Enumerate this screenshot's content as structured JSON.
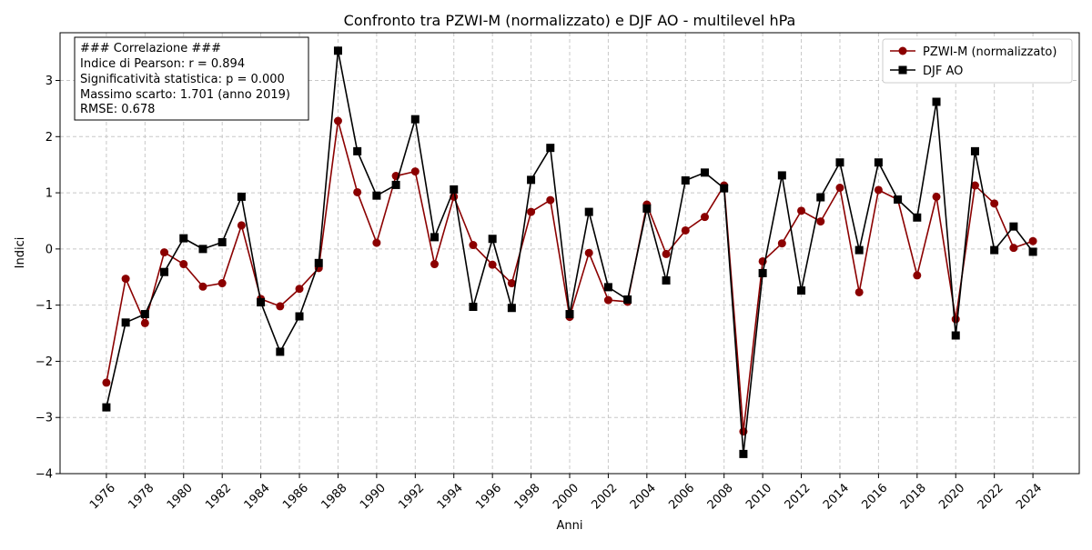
{
  "chart_data": {
    "type": "line",
    "title": "Confronto tra PZWI-M (normalizzato) e DJF AO - multilevel hPa",
    "xlabel": "Anni",
    "ylabel": "Indici",
    "xlim": [
      1973.6,
      2026.4
    ],
    "ylim": [
      -4,
      3.85
    ],
    "x_ticks": [
      1976,
      1978,
      1980,
      1982,
      1984,
      1986,
      1988,
      1990,
      1992,
      1994,
      1996,
      1998,
      2000,
      2002,
      2004,
      2006,
      2008,
      2010,
      2012,
      2014,
      2016,
      2018,
      2020,
      2022,
      2024
    ],
    "y_ticks": [
      -4,
      -3,
      -2,
      -1,
      0,
      1,
      2,
      3
    ],
    "y_tick_labels": [
      "−4",
      "−3",
      "−2",
      "−1",
      "0",
      "1",
      "2",
      "3"
    ],
    "grid": true,
    "legend_position": "upper right",
    "x": [
      1976,
      1977,
      1978,
      1979,
      1980,
      1981,
      1982,
      1983,
      1984,
      1985,
      1986,
      1987,
      1988,
      1989,
      1990,
      1991,
      1992,
      1993,
      1994,
      1995,
      1996,
      1997,
      1998,
      1999,
      2000,
      2001,
      2002,
      2003,
      2004,
      2005,
      2006,
      2007,
      2008,
      2009,
      2010,
      2011,
      2012,
      2013,
      2014,
      2015,
      2016,
      2017,
      2018,
      2019,
      2020,
      2021,
      2022,
      2023,
      2024
    ],
    "series": [
      {
        "name": "PZWI-M (normalizzato)",
        "color": "#8b0000",
        "marker": "circle",
        "values": [
          -2.38,
          -0.53,
          -1.32,
          -0.06,
          -0.27,
          -0.67,
          -0.61,
          0.42,
          -0.89,
          -1.02,
          -0.71,
          -0.34,
          2.28,
          1.01,
          0.11,
          1.3,
          1.38,
          -0.27,
          0.93,
          0.07,
          -0.28,
          -0.61,
          0.66,
          0.87,
          -1.21,
          -0.07,
          -0.91,
          -0.94,
          0.79,
          -0.09,
          0.33,
          0.57,
          1.13,
          -3.25,
          -0.22,
          0.1,
          0.68,
          0.49,
          1.09,
          -0.77,
          1.05,
          0.88,
          -0.47,
          0.93,
          -1.25,
          1.13,
          0.81,
          0.02,
          0.14
        ]
      },
      {
        "name": "DJF AO",
        "color": "#000000",
        "marker": "square",
        "values": [
          -2.82,
          -1.31,
          -1.16,
          -0.41,
          0.19,
          0.0,
          0.12,
          0.93,
          -0.95,
          -1.83,
          -1.2,
          -0.25,
          3.53,
          1.74,
          0.95,
          1.14,
          2.31,
          0.21,
          1.06,
          -1.03,
          0.18,
          -1.05,
          1.23,
          1.8,
          -1.16,
          0.66,
          -0.68,
          -0.9,
          0.72,
          -0.56,
          1.22,
          1.36,
          1.08,
          -3.65,
          -0.43,
          1.31,
          -0.74,
          0.92,
          1.54,
          -0.02,
          1.54,
          0.88,
          0.56,
          2.62,
          -1.54,
          1.74,
          -0.02,
          0.4,
          -0.05
        ]
      }
    ],
    "annotation_lines": [
      "### Correlazione ###",
      "Indice di Pearson: r = 0.894",
      "Significatività statistica: p = 0.000",
      "Massimo scarto: 1.701 (anno 2019)",
      "RMSE: 0.678"
    ]
  }
}
